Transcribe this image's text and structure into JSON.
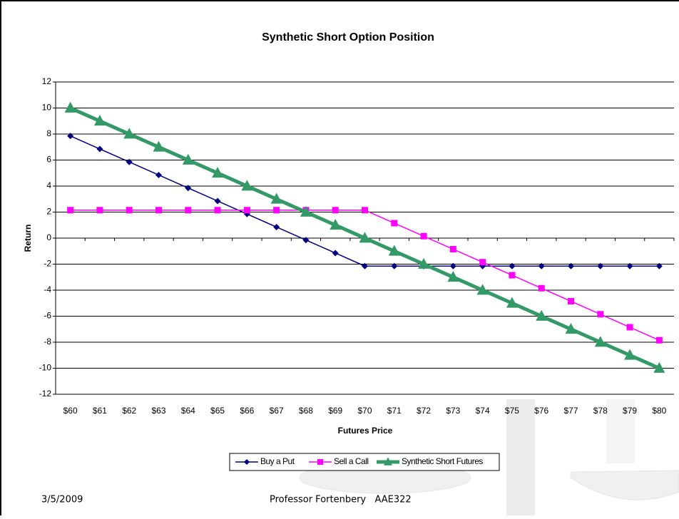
{
  "chart_data": {
    "type": "line",
    "title": "Synthetic Short Option Position",
    "x_label": "Futures Price",
    "y_label": "Return",
    "categories": [
      "$60",
      "$61",
      "$62",
      "$63",
      "$64",
      "$65",
      "$66",
      "$67",
      "$68",
      "$69",
      "$70",
      "$71",
      "$72",
      "$73",
      "$74",
      "$75",
      "$76",
      "$77",
      "$78",
      "$79",
      "$80"
    ],
    "series": [
      {
        "name": "Buy a Put",
        "color": "#000080",
        "marker": "diamond",
        "width": 1.5,
        "values": [
          7.85,
          6.85,
          5.85,
          4.85,
          3.85,
          2.85,
          1.85,
          0.85,
          -0.15,
          -1.15,
          -2.15,
          -2.15,
          -2.15,
          -2.15,
          -2.15,
          -2.15,
          -2.15,
          -2.15,
          -2.15,
          -2.15,
          -2.15
        ]
      },
      {
        "name": "Sell a Call",
        "color": "#ff00ff",
        "marker": "square",
        "width": 1.5,
        "values": [
          2.15,
          2.15,
          2.15,
          2.15,
          2.15,
          2.15,
          2.15,
          2.15,
          2.15,
          2.15,
          2.15,
          1.15,
          0.15,
          -0.85,
          -1.85,
          -2.85,
          -3.85,
          -4.85,
          -5.85,
          -6.85,
          -7.85
        ]
      },
      {
        "name": "Synthetic Short Futures",
        "color": "#339966",
        "marker": "triangle",
        "width": 5,
        "values": [
          10,
          9,
          8,
          7,
          6,
          5,
          4,
          3,
          2,
          1,
          0,
          -1,
          -2,
          -3,
          -4,
          -5,
          -6,
          -7,
          -8,
          -9,
          -10
        ]
      }
    ],
    "ylim": [
      -12,
      12
    ],
    "yticks": [
      -12,
      -10,
      -8,
      -6,
      -4,
      -2,
      0,
      2,
      4,
      6,
      8,
      10,
      12
    ],
    "grid": true
  },
  "footer": {
    "date": "3/5/2009",
    "presenter": "Professor Fortenbery   AAE322"
  }
}
